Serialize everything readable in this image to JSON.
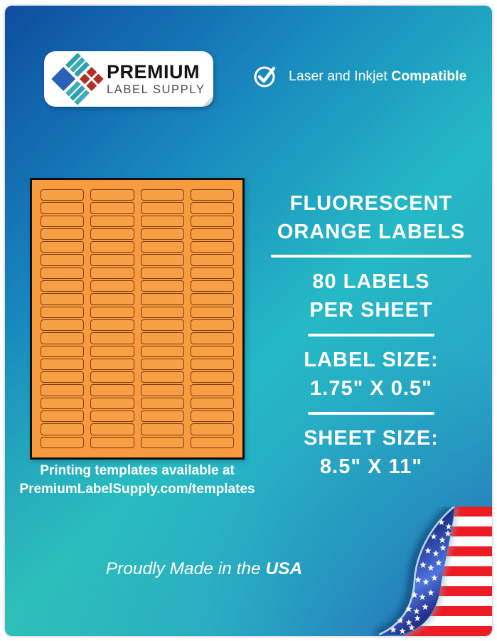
{
  "logo": {
    "line1": "PREMIUM",
    "line2": "LABEL SUPPLY"
  },
  "compatibility": {
    "regular": "Laser and Inkjet ",
    "bold": "Compatible"
  },
  "sheet": {
    "columns": 4,
    "rows": 20,
    "labels_total": 80,
    "sheet_color": "#f79b3e",
    "label_border_color": "#7e3c10"
  },
  "templates_note": {
    "line1": "Printing templates available at",
    "line2": "PremiumLabelSupply.com/templates"
  },
  "product": {
    "title_line1": "FLUORESCENT",
    "title_line2": "ORANGE LABELS",
    "count_line1": "80 LABELS",
    "count_line2": "PER SHEET",
    "label_size_heading": "LABEL SIZE:",
    "label_size_value": "1.75\" X 0.5\"",
    "sheet_size_heading": "SHEET SIZE:",
    "sheet_size_value": "8.5\" X 11\""
  },
  "footer": {
    "made_in_regular": "Proudly Made in the ",
    "made_in_bold": "USA"
  },
  "colors": {
    "bg_blue": "#0e4da0",
    "bg_teal": "#25b9c5",
    "orange": "#f79b3e",
    "flag_red": "#ed1c24",
    "flag_blue": "#26348f",
    "logo_blue": "#2a63b5",
    "logo_teal": "#2e9fae",
    "logo_red": "#b03028"
  }
}
